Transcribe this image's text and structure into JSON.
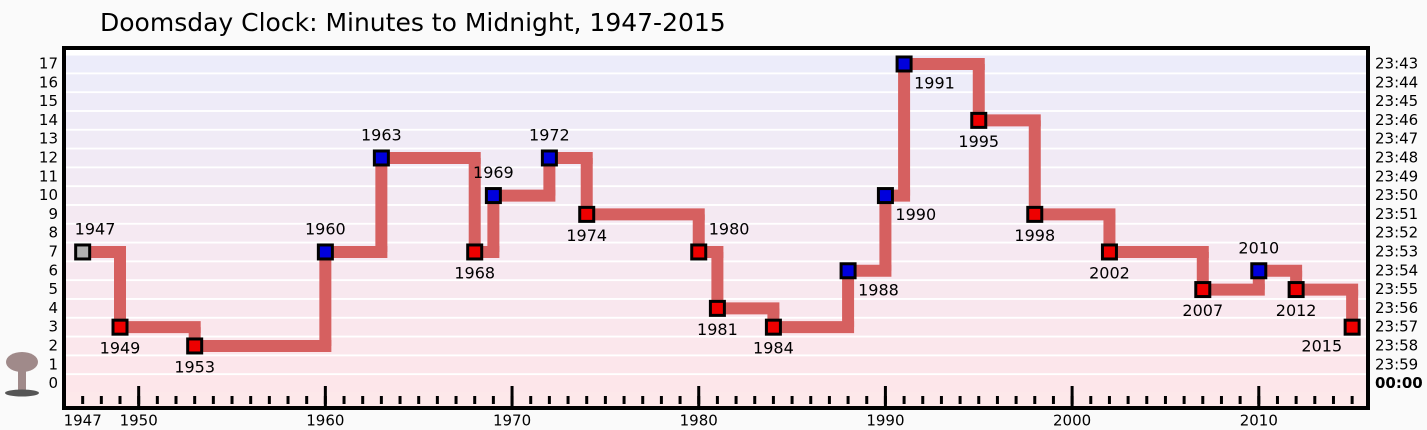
{
  "chart_data": {
    "type": "step",
    "title": "Doomsday Clock: Minutes to Midnight, 1947-2015",
    "x": [
      1947,
      1949,
      1953,
      1960,
      1963,
      1968,
      1969,
      1972,
      1974,
      1980,
      1981,
      1984,
      1988,
      1990,
      1991,
      1995,
      1998,
      2002,
      2007,
      2010,
      2012,
      2015
    ],
    "values": [
      7,
      3,
      2,
      7,
      12,
      7,
      10,
      12,
      9,
      7,
      4,
      3,
      6,
      10,
      17,
      14,
      9,
      7,
      5,
      6,
      5,
      3
    ],
    "color": "#d66060",
    "marker_colors": [
      "#b0b0b0",
      "#ee0000",
      "#ee0000",
      "#0000dd",
      "#0000dd",
      "#ee0000",
      "#0000dd",
      "#0000dd",
      "#ee0000",
      "#ee0000",
      "#ee0000",
      "#ee0000",
      "#0000dd",
      "#0000dd",
      "#0000dd",
      "#ee0000",
      "#ee0000",
      "#ee0000",
      "#ee0000",
      "#0000dd",
      "#ee0000",
      "#ee0000"
    ],
    "xlim": [
      1946,
      2015.85
    ],
    "xticks": [
      1947,
      1950,
      1960,
      1970,
      1980,
      1990,
      2000,
      2010
    ],
    "xminorticks": [
      1947,
      1948,
      1949,
      1950,
      1951,
      1952,
      1953,
      1954,
      1955,
      1956,
      1957,
      1958,
      1959,
      1960,
      1961,
      1962,
      1963,
      1964,
      1965,
      1966,
      1967,
      1968,
      1969,
      1970,
      1971,
      1972,
      1973,
      1974,
      1975,
      1976,
      1977,
      1978,
      1979,
      1980,
      1981,
      1982,
      1983,
      1984,
      1985,
      1986,
      1987,
      1988,
      1989,
      1990,
      1991,
      1992,
      1993,
      1994,
      1995,
      1996,
      1997,
      1998,
      1999,
      2000,
      2001,
      2002,
      2003,
      2004,
      2005,
      2006,
      2007,
      2008,
      2009,
      2010,
      2011,
      2012,
      2013,
      2014,
      2015
    ],
    "ylim": [
      -1.3,
      17.85
    ],
    "yticks": [
      0,
      1,
      2,
      3,
      4,
      5,
      6,
      7,
      8,
      9,
      10,
      11,
      12,
      13,
      14,
      15,
      16,
      17
    ],
    "y2lim": [
      -1.3,
      17.85
    ],
    "y2ticks": [
      {
        "value": 0,
        "label": "00:00"
      },
      {
        "value": 1,
        "label": "23:59"
      },
      {
        "value": 2,
        "label": "23:58"
      },
      {
        "value": 3,
        "label": "23:57"
      },
      {
        "value": 4,
        "label": "23:56"
      },
      {
        "value": 5,
        "label": "23:55"
      },
      {
        "value": 6,
        "label": "23:54"
      },
      {
        "value": 7,
        "label": "23:53"
      },
      {
        "value": 8,
        "label": "23:52"
      },
      {
        "value": 9,
        "label": "23:51"
      },
      {
        "value": 10,
        "label": "23:50"
      },
      {
        "value": 11,
        "label": "23:49"
      },
      {
        "value": 12,
        "label": "23:48"
      },
      {
        "value": 13,
        "label": "23:47"
      },
      {
        "value": 14,
        "label": "23:46"
      },
      {
        "value": 15,
        "label": "23:45"
      },
      {
        "value": 16,
        "label": "23:44"
      },
      {
        "value": 17,
        "label": "23:43"
      }
    ],
    "grid": true
  }
}
